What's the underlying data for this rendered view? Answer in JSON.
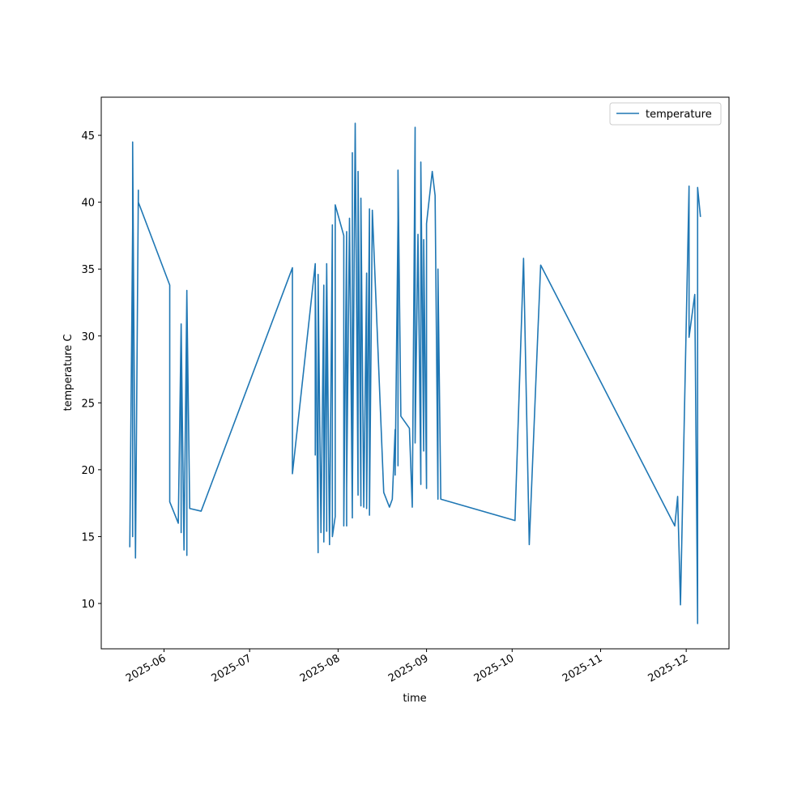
{
  "chart_data": {
    "type": "line",
    "xlabel": "time",
    "ylabel": "temperature C",
    "x": [
      "2025-05-20",
      "2025-05-21",
      "2025-05-21",
      "2025-05-21",
      "2025-05-22",
      "2025-05-23",
      "2025-05-23",
      "2025-06-03",
      "2025-06-03",
      "2025-06-06",
      "2025-06-07",
      "2025-06-07",
      "2025-06-07",
      "2025-06-08",
      "2025-06-09",
      "2025-06-09",
      "2025-06-09",
      "2025-06-10",
      "2025-06-14",
      "2025-07-16",
      "2025-07-16",
      "2025-07-24",
      "2025-07-24",
      "2025-07-24",
      "2025-07-25",
      "2025-07-25",
      "2025-07-26",
      "2025-07-27",
      "2025-07-27",
      "2025-07-28",
      "2025-07-28",
      "2025-07-28",
      "2025-07-29",
      "2025-07-30",
      "2025-07-30",
      "2025-07-31",
      "2025-07-31",
      "2025-08-03",
      "2025-08-03",
      "2025-08-04",
      "2025-08-04",
      "2025-08-04",
      "2025-08-04",
      "2025-08-05",
      "2025-08-06",
      "2025-08-06",
      "2025-08-06",
      "2025-08-07",
      "2025-08-08",
      "2025-08-08",
      "2025-08-09",
      "2025-08-09",
      "2025-08-10",
      "2025-08-11",
      "2025-08-11",
      "2025-08-12",
      "2025-08-12",
      "2025-08-13",
      "2025-08-17",
      "2025-08-19",
      "2025-08-20",
      "2025-08-21",
      "2025-08-21",
      "2025-08-22",
      "2025-08-22",
      "2025-08-22",
      "2025-08-23",
      "2025-08-26",
      "2025-08-27",
      "2025-08-28",
      "2025-08-28",
      "2025-08-29",
      "2025-08-30",
      "2025-08-30",
      "2025-08-31",
      "2025-08-31",
      "2025-09-01",
      "2025-09-01",
      "2025-09-03",
      "2025-09-04",
      "2025-09-05",
      "2025-09-05",
      "2025-09-06",
      "2025-10-02",
      "2025-10-05",
      "2025-10-07",
      "2025-10-10",
      "2025-10-11",
      "2025-11-27",
      "2025-11-28",
      "2025-11-29",
      "2025-12-02",
      "2025-12-02",
      "2025-12-04",
      "2025-12-05",
      "2025-12-05",
      "2025-12-06"
    ],
    "series": [
      {
        "name": "temperature",
        "color": "#1f77b4",
        "values": [
          14.2,
          38.1,
          15.0,
          44.5,
          13.4,
          40.9,
          40.0,
          33.8,
          17.6,
          16.0,
          30.9,
          15.3,
          30.9,
          14.0,
          33.4,
          13.6,
          33.2,
          17.1,
          16.9,
          35.1,
          19.7,
          35.4,
          21.1,
          34.9,
          13.8,
          34.6,
          15.3,
          33.8,
          14.6,
          35.0,
          15.4,
          35.4,
          14.4,
          38.3,
          15.0,
          16.5,
          39.8,
          37.5,
          15.8,
          37.8,
          15.8,
          36.5,
          18.6,
          38.8,
          16.4,
          43.7,
          17.6,
          45.9,
          18.1,
          42.3,
          17.3,
          40.3,
          17.2,
          34.7,
          17.1,
          39.5,
          16.6,
          39.4,
          18.3,
          17.2,
          17.8,
          23.0,
          19.6,
          38.7,
          20.3,
          42.4,
          24.0,
          23.1,
          17.2,
          45.6,
          22.0,
          37.6,
          18.9,
          43.0,
          21.4,
          37.2,
          18.6,
          38.4,
          42.3,
          40.5,
          17.8,
          35.0,
          17.8,
          16.2,
          35.8,
          14.4,
          30.2,
          35.3,
          15.8,
          18.0,
          9.9,
          41.2,
          29.9,
          33.1,
          8.5,
          41.1,
          38.9
        ]
      }
    ],
    "xlim": [
      "2025-05-10",
      "2025-12-16"
    ],
    "xticks": [
      {
        "value": "2025-06-01",
        "label": "2025-06"
      },
      {
        "value": "2025-07-01",
        "label": "2025-07"
      },
      {
        "value": "2025-08-01",
        "label": "2025-08"
      },
      {
        "value": "2025-09-01",
        "label": "2025-09"
      },
      {
        "value": "2025-10-01",
        "label": "2025-10"
      },
      {
        "value": "2025-11-01",
        "label": "2025-11"
      },
      {
        "value": "2025-12-01",
        "label": "2025-12"
      }
    ],
    "ylim": [
      6.61,
      47.85
    ],
    "yticks": [
      10,
      15,
      20,
      25,
      30,
      35,
      40,
      45
    ],
    "grid": false,
    "legend": "upper right"
  }
}
